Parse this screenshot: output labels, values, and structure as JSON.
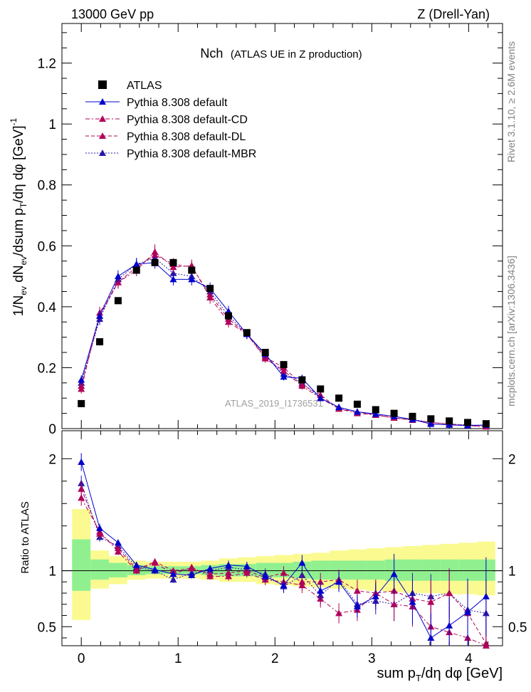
{
  "header": {
    "energy_label": "13000 GeV pp",
    "process_label": "Z (Drell-Yan)"
  },
  "side_labels": {
    "rivet": "Rivet 3.1.10, ≥ 2.6M events",
    "mcplots": "mcplots.cern.ch [arXiv:1306.3436]"
  },
  "watermark": "ATLAS_2019_I1736531",
  "chart_data": [
    {
      "type": "scatter",
      "title_main": "Nch",
      "title_sub": "(ATLAS UE in Z production)",
      "ylabel": "1/N_ev dN_ev/dsum p_T/dη dφ [GeV]^-1",
      "xlim": [
        -0.2,
        4.35
      ],
      "ylim": [
        0,
        1.33
      ],
      "yticks": [
        0.2,
        0.4,
        0.6,
        0.8,
        1,
        1.2
      ],
      "yticks_labels": [
        "0.2",
        "0.4",
        "0.6",
        "0.8",
        "1",
        "1.2"
      ],
      "legend_placement": "top-left",
      "x": [
        0,
        0.19,
        0.38,
        0.57,
        0.76,
        0.95,
        1.14,
        1.33,
        1.52,
        1.71,
        1.9,
        2.09,
        2.28,
        2.47,
        2.66,
        2.85,
        3.04,
        3.23,
        3.42,
        3.61,
        3.8,
        3.99,
        4.18
      ],
      "series": [
        {
          "name": "ATLAS",
          "color": "#000000",
          "marker": "square",
          "values": [
            0.082,
            0.285,
            0.42,
            0.52,
            0.545,
            0.545,
            0.52,
            0.46,
            0.37,
            0.315,
            0.25,
            0.21,
            0.16,
            0.13,
            0.1,
            0.08,
            0.062,
            0.05,
            0.04,
            0.032,
            0.025,
            0.02,
            0.016
          ]
        },
        {
          "name": "Pythia 8.308 default",
          "color": "#0000cc",
          "marker": "triangle",
          "dash": "",
          "values": [
            0.16,
            0.37,
            0.5,
            0.54,
            0.545,
            0.49,
            0.49,
            0.46,
            0.385,
            0.31,
            0.245,
            0.17,
            0.165,
            0.1,
            0.07,
            0.055,
            0.048,
            0.04,
            0.03,
            0.015,
            0.012,
            0.01,
            0.012
          ],
          "errors": [
            0.015,
            0.02,
            0.02,
            0.02,
            0.02,
            0.02,
            0.02,
            0.02,
            0.018,
            0.016,
            0.014,
            0.012,
            0.012,
            0.01,
            0.008,
            0.007,
            0.006,
            0.006,
            0.005,
            0.005,
            0.005,
            0.004,
            0.005
          ]
        },
        {
          "name": "Pythia 8.308 default-CD",
          "color": "#b0005a",
          "marker": "triangle",
          "dash": "6,3,2,3",
          "values": [
            0.13,
            0.38,
            0.48,
            0.52,
            0.58,
            0.53,
            0.535,
            0.43,
            0.35,
            0.31,
            0.23,
            0.19,
            0.14,
            0.1,
            0.065,
            0.05,
            0.045,
            0.035,
            0.028,
            0.02,
            0.015,
            0.01,
            0.006
          ],
          "errors": [
            0.015,
            0.02,
            0.02,
            0.02,
            0.025,
            0.02,
            0.02,
            0.02,
            0.018,
            0.016,
            0.014,
            0.012,
            0.012,
            0.01,
            0.008,
            0.007,
            0.006,
            0.006,
            0.005,
            0.005,
            0.005,
            0.004,
            0.004
          ]
        },
        {
          "name": "Pythia 8.308 default-DL",
          "color": "#b0005a",
          "marker": "triangle",
          "dash": "5,3",
          "values": [
            0.14,
            0.37,
            0.48,
            0.53,
            0.57,
            0.54,
            0.53,
            0.44,
            0.36,
            0.31,
            0.235,
            0.2,
            0.145,
            0.11,
            0.065,
            0.055,
            0.045,
            0.035,
            0.028,
            0.02,
            0.015,
            0.01,
            0.007
          ],
          "errors": [
            0.015,
            0.02,
            0.02,
            0.02,
            0.025,
            0.02,
            0.02,
            0.02,
            0.018,
            0.016,
            0.014,
            0.012,
            0.012,
            0.01,
            0.008,
            0.007,
            0.006,
            0.006,
            0.005,
            0.005,
            0.005,
            0.004,
            0.004
          ]
        },
        {
          "name": "Pythia 8.308 default-MBR",
          "color": "#2a1aa8",
          "marker": "triangle",
          "dash": "2,2",
          "values": [
            0.15,
            0.36,
            0.49,
            0.54,
            0.56,
            0.51,
            0.5,
            0.45,
            0.37,
            0.31,
            0.24,
            0.18,
            0.15,
            0.1,
            0.07,
            0.055,
            0.045,
            0.035,
            0.03,
            0.02,
            0.015,
            0.012,
            0.01
          ],
          "errors": [
            0.015,
            0.02,
            0.02,
            0.02,
            0.025,
            0.02,
            0.02,
            0.02,
            0.018,
            0.016,
            0.014,
            0.012,
            0.012,
            0.01,
            0.008,
            0.007,
            0.006,
            0.006,
            0.005,
            0.005,
            0.005,
            0.004,
            0.004
          ]
        }
      ]
    },
    {
      "type": "scatter",
      "ylabel": "Ratio to ATLAS",
      "xlabel": "sum p_T/dη dφ [GeV]",
      "xlim": [
        -0.2,
        4.35
      ],
      "ylim": [
        0.33,
        2.25
      ],
      "yticks": [
        0.5,
        1,
        2
      ],
      "yticks_labels": [
        "0.5",
        "1",
        "2"
      ],
      "xticks": [
        0,
        1,
        2,
        3,
        4
      ],
      "xticks_labels": [
        "0",
        "1",
        "2",
        "3",
        "4"
      ],
      "reference_line": 1,
      "band_edges": [
        -0.095,
        0.095,
        0.285,
        0.475,
        0.665,
        0.855,
        1.045,
        1.235,
        1.425,
        1.615,
        1.805,
        1.995,
        2.185,
        2.375,
        2.565,
        2.755,
        2.945,
        3.135,
        3.325,
        3.515,
        3.705,
        3.895,
        4.085,
        4.275
      ],
      "band_stat_lower": [
        0.82,
        0.92,
        0.94,
        0.96,
        0.97,
        0.97,
        0.97,
        0.96,
        0.95,
        0.95,
        0.94,
        0.94,
        0.93,
        0.92,
        0.92,
        0.92,
        0.92,
        0.91,
        0.91,
        0.91,
        0.91,
        0.91,
        0.91
      ],
      "band_stat_upper": [
        1.28,
        1.1,
        1.07,
        1.05,
        1.04,
        1.04,
        1.04,
        1.05,
        1.06,
        1.06,
        1.07,
        1.07,
        1.08,
        1.09,
        1.09,
        1.09,
        1.09,
        1.1,
        1.1,
        1.1,
        1.1,
        1.1,
        1.1
      ],
      "band_tot_lower": [
        0.56,
        0.84,
        0.88,
        0.92,
        0.93,
        0.93,
        0.93,
        0.92,
        0.9,
        0.9,
        0.88,
        0.87,
        0.86,
        0.85,
        0.84,
        0.83,
        0.82,
        0.81,
        0.8,
        0.8,
        0.79,
        0.79,
        0.78
      ],
      "band_tot_upper": [
        1.55,
        1.18,
        1.13,
        1.09,
        1.08,
        1.08,
        1.08,
        1.09,
        1.11,
        1.12,
        1.13,
        1.14,
        1.15,
        1.16,
        1.18,
        1.19,
        1.2,
        1.21,
        1.22,
        1.23,
        1.24,
        1.25,
        1.26
      ],
      "stat_band_color": "#90f090",
      "total_band_color": "#fafa90",
      "x": [
        0,
        0.19,
        0.38,
        0.57,
        0.76,
        0.95,
        1.14,
        1.33,
        1.52,
        1.71,
        1.9,
        2.09,
        2.28,
        2.47,
        2.66,
        2.85,
        3.04,
        3.23,
        3.42,
        3.61,
        3.8,
        3.99,
        4.18
      ],
      "series": [
        {
          "name": "Pythia 8.308 default",
          "color": "#0000cc",
          "dash": "",
          "values": [
            1.97,
            1.38,
            1.25,
            1.05,
            1.01,
            0.97,
            0.96,
            1.02,
            1.05,
            1.04,
            0.95,
            0.87,
            1.07,
            0.82,
            0.9,
            0.68,
            0.77,
            0.97,
            0.72,
            0.4,
            0.51,
            0.63,
            0.77
          ],
          "errors": [
            0.08,
            0.04,
            0.03,
            0.03,
            0.03,
            0.03,
            0.03,
            0.03,
            0.04,
            0.04,
            0.05,
            0.06,
            0.07,
            0.08,
            0.09,
            0.1,
            0.12,
            0.18,
            0.2,
            0.22,
            0.25,
            0.3,
            0.35
          ]
        },
        {
          "name": "Pythia 8.308 default-CD",
          "color": "#b0005a",
          "dash": "6,3,2,3",
          "values": [
            1.65,
            1.35,
            1.17,
            1.0,
            1.07,
            0.97,
            1.03,
            0.95,
            0.95,
            0.98,
            0.92,
            0.9,
            0.87,
            0.75,
            0.62,
            0.65,
            0.8,
            0.7,
            0.68,
            0.5,
            0.45,
            0.4,
            0.3
          ],
          "errors": [
            0.07,
            0.04,
            0.03,
            0.03,
            0.03,
            0.03,
            0.03,
            0.03,
            0.04,
            0.04,
            0.05,
            0.06,
            0.07,
            0.08,
            0.09,
            0.1,
            0.12,
            0.15,
            0.18,
            0.2,
            0.22,
            0.25,
            0.3
          ]
        },
        {
          "name": "Pythia 8.308 default-DL",
          "color": "#b0005a",
          "dash": "5,3",
          "values": [
            1.73,
            1.33,
            1.2,
            1.01,
            1.08,
            1.0,
            1.02,
            0.97,
            0.98,
            1.0,
            0.94,
            0.98,
            0.9,
            0.9,
            0.92,
            0.82,
            0.8,
            0.82,
            0.75,
            0.72,
            0.8,
            0.62,
            0.35
          ],
          "errors": [
            0.07,
            0.04,
            0.03,
            0.03,
            0.03,
            0.03,
            0.03,
            0.03,
            0.04,
            0.04,
            0.05,
            0.06,
            0.07,
            0.08,
            0.09,
            0.1,
            0.12,
            0.15,
            0.18,
            0.2,
            0.22,
            0.25,
            0.3
          ]
        },
        {
          "name": "Pythia 8.308 default-MBR",
          "color": "#2a1aa8",
          "dash": "2,2",
          "values": [
            1.78,
            1.3,
            1.22,
            1.03,
            1.0,
            0.92,
            0.98,
            1.0,
            1.03,
            1.01,
            0.97,
            0.86,
            0.96,
            0.78,
            0.92,
            0.7,
            0.73,
            0.7,
            0.8,
            0.77,
            0.8,
            0.65,
            0.62
          ],
          "errors": [
            0.07,
            0.04,
            0.03,
            0.03,
            0.03,
            0.03,
            0.03,
            0.03,
            0.04,
            0.04,
            0.05,
            0.06,
            0.07,
            0.08,
            0.09,
            0.1,
            0.12,
            0.15,
            0.18,
            0.2,
            0.22,
            0.25,
            0.3
          ]
        }
      ]
    }
  ]
}
